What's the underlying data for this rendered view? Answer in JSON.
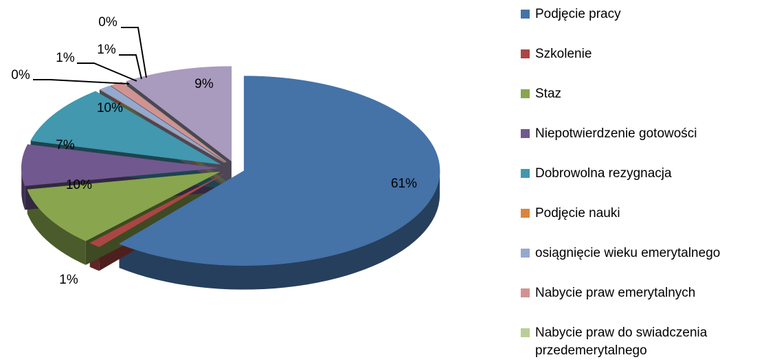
{
  "chart_data": {
    "type": "pie",
    "categories": [
      "Podjęcie pracy",
      "Szkolenie",
      "Staz",
      "Niepotwierdzenie gotowości",
      "Dobrowolna rezygnacja",
      "Podjęcie nauki",
      "osiągnięcie wieku emerytalnego",
      "Nabycie praw emerytalnych",
      "Nabycie praw do swiadczenia przedemerytalnego",
      null
    ],
    "values": [
      61,
      1,
      10,
      7,
      10,
      0,
      1,
      1,
      0,
      9
    ],
    "value_labels": [
      "61%",
      "1%",
      "10%",
      "7%",
      "10%",
      "0%",
      "1%",
      "1%",
      "0%",
      "9%"
    ],
    "colors": [
      "#4572a7",
      "#aa4643",
      "#89a54e",
      "#71588f",
      "#4198af",
      "#db843d",
      "#93a9cf",
      "#d19392",
      "#b9cd96",
      "#a99bbd"
    ],
    "legend": "right"
  }
}
